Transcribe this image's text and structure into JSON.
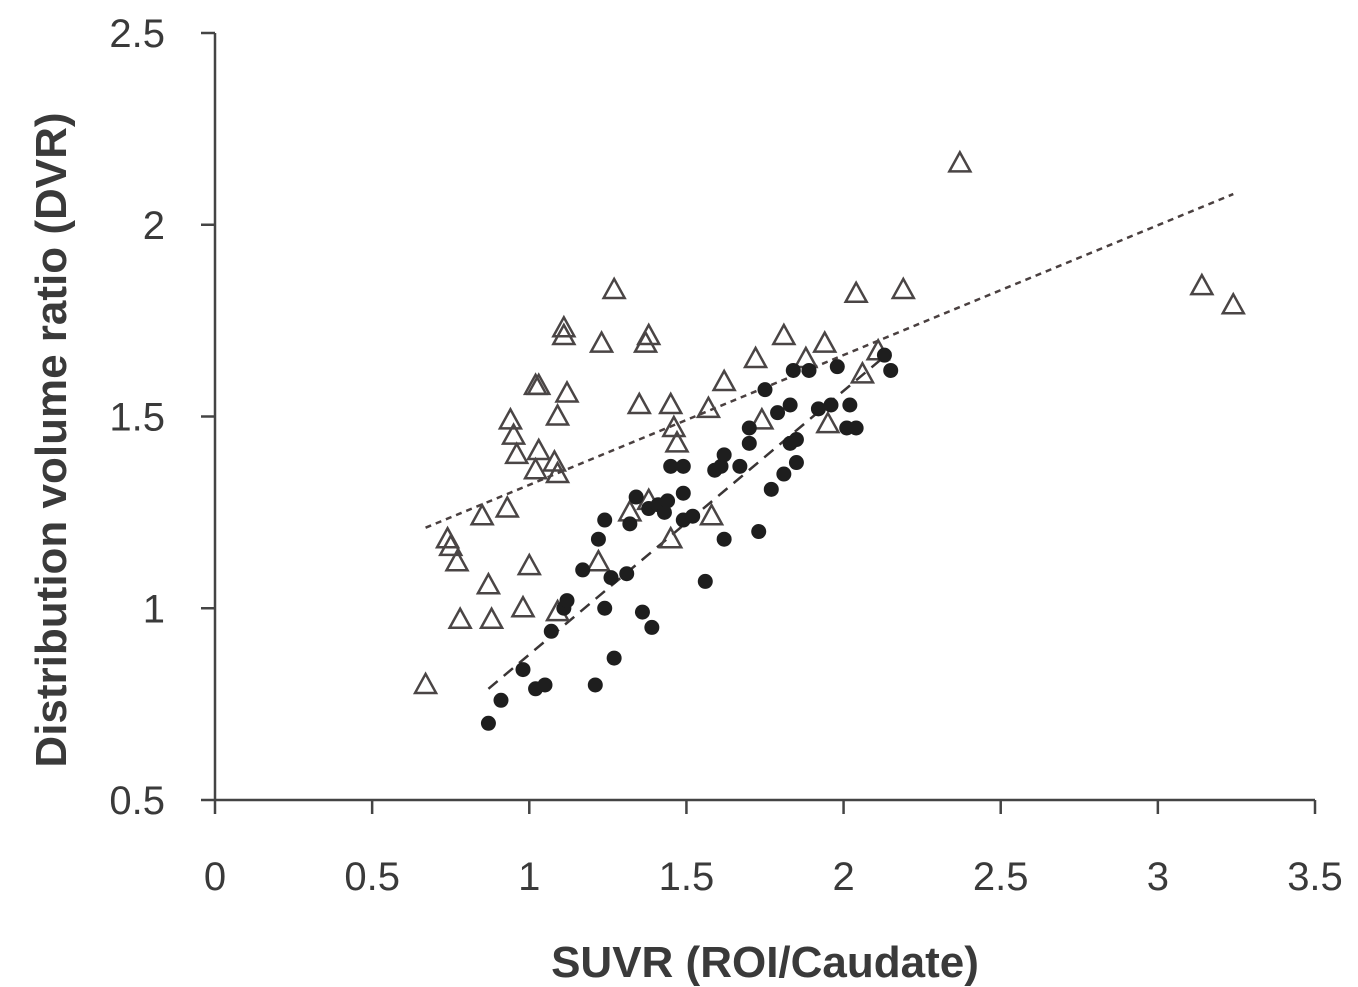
{
  "chart_data": {
    "type": "scatter",
    "title": "",
    "xlabel": "SUVR (ROI/Caudate)",
    "ylabel": "Distribution volume ratio (DVR)",
    "xlim": [
      0,
      3.5
    ],
    "ylim": [
      0.5,
      2.5
    ],
    "xticks": [
      "0",
      "0.5",
      "1",
      "1.5",
      "2",
      "2.5",
      "3",
      "3.5"
    ],
    "yticks": [
      "0.5",
      "1",
      "1.5",
      "2",
      "2.5"
    ],
    "grid": false,
    "legend": "none",
    "series": [
      {
        "marker": "open-triangle",
        "points": [
          [
            0.67,
            0.8
          ],
          [
            0.74,
            1.18
          ],
          [
            0.75,
            1.16
          ],
          [
            0.77,
            1.12
          ],
          [
            0.78,
            0.97
          ],
          [
            0.85,
            1.24
          ],
          [
            0.87,
            1.06
          ],
          [
            0.88,
            0.97
          ],
          [
            0.93,
            1.26
          ],
          [
            0.94,
            1.49
          ],
          [
            0.95,
            1.45
          ],
          [
            0.96,
            1.4
          ],
          [
            0.98,
            1.0
          ],
          [
            1.0,
            1.11
          ],
          [
            1.02,
            1.58
          ],
          [
            1.03,
            1.58
          ],
          [
            1.02,
            1.36
          ],
          [
            1.03,
            1.41
          ],
          [
            1.08,
            1.38
          ],
          [
            1.09,
            1.35
          ],
          [
            1.09,
            0.99
          ],
          [
            1.09,
            1.5
          ],
          [
            1.11,
            1.73
          ],
          [
            1.11,
            1.71
          ],
          [
            1.12,
            1.56
          ],
          [
            1.22,
            1.12
          ],
          [
            1.23,
            1.69
          ],
          [
            1.27,
            1.83
          ],
          [
            1.32,
            1.25
          ],
          [
            1.35,
            1.53
          ],
          [
            1.37,
            1.69
          ],
          [
            1.38,
            1.71
          ],
          [
            1.38,
            1.28
          ],
          [
            1.45,
            1.18
          ],
          [
            1.45,
            1.53
          ],
          [
            1.46,
            1.47
          ],
          [
            1.47,
            1.43
          ],
          [
            1.57,
            1.52
          ],
          [
            1.58,
            1.24
          ],
          [
            1.62,
            1.59
          ],
          [
            1.72,
            1.65
          ],
          [
            1.74,
            1.49
          ],
          [
            1.81,
            1.71
          ],
          [
            1.88,
            1.65
          ],
          [
            1.94,
            1.69
          ],
          [
            1.95,
            1.48
          ],
          [
            2.04,
            1.82
          ],
          [
            2.06,
            1.61
          ],
          [
            2.11,
            1.67
          ],
          [
            2.19,
            1.83
          ],
          [
            2.37,
            2.16
          ],
          [
            3.14,
            1.84
          ],
          [
            3.24,
            1.79
          ]
        ]
      },
      {
        "marker": "filled-circle",
        "points": [
          [
            0.87,
            0.7
          ],
          [
            0.91,
            0.76
          ],
          [
            0.98,
            0.84
          ],
          [
            1.02,
            0.79
          ],
          [
            1.05,
            0.8
          ],
          [
            1.07,
            0.94
          ],
          [
            1.11,
            1.0
          ],
          [
            1.12,
            1.02
          ],
          [
            1.17,
            1.1
          ],
          [
            1.21,
            0.8
          ],
          [
            1.22,
            1.18
          ],
          [
            1.24,
            1.0
          ],
          [
            1.24,
            1.23
          ],
          [
            1.26,
            1.08
          ],
          [
            1.27,
            0.87
          ],
          [
            1.31,
            1.09
          ],
          [
            1.32,
            1.22
          ],
          [
            1.34,
            1.29
          ],
          [
            1.36,
            0.99
          ],
          [
            1.39,
            0.95
          ],
          [
            1.38,
            1.26
          ],
          [
            1.41,
            1.27
          ],
          [
            1.43,
            1.25
          ],
          [
            1.44,
            1.28
          ],
          [
            1.45,
            1.37
          ],
          [
            1.49,
            1.3
          ],
          [
            1.49,
            1.37
          ],
          [
            1.49,
            1.23
          ],
          [
            1.52,
            1.24
          ],
          [
            1.56,
            1.07
          ],
          [
            1.59,
            1.36
          ],
          [
            1.61,
            1.37
          ],
          [
            1.62,
            1.18
          ],
          [
            1.62,
            1.4
          ],
          [
            1.67,
            1.37
          ],
          [
            1.7,
            1.43
          ],
          [
            1.7,
            1.47
          ],
          [
            1.73,
            1.2
          ],
          [
            1.75,
            1.57
          ],
          [
            1.77,
            1.31
          ],
          [
            1.79,
            1.51
          ],
          [
            1.81,
            1.35
          ],
          [
            1.83,
            1.43
          ],
          [
            1.83,
            1.53
          ],
          [
            1.84,
            1.62
          ],
          [
            1.85,
            1.38
          ],
          [
            1.85,
            1.44
          ],
          [
            1.89,
            1.62
          ],
          [
            1.92,
            1.52
          ],
          [
            1.96,
            1.53
          ],
          [
            1.98,
            1.63
          ],
          [
            2.01,
            1.47
          ],
          [
            2.02,
            1.53
          ],
          [
            2.04,
            1.47
          ],
          [
            2.13,
            1.66
          ],
          [
            2.15,
            1.62
          ]
        ]
      }
    ],
    "trendlines": [
      {
        "series": 0,
        "style": "dotted",
        "from": [
          0.67,
          1.21
        ],
        "to": [
          3.24,
          2.08
        ]
      },
      {
        "series": 1,
        "style": "dashed",
        "from": [
          0.87,
          0.79
        ],
        "to": [
          2.15,
          1.67
        ]
      }
    ]
  }
}
